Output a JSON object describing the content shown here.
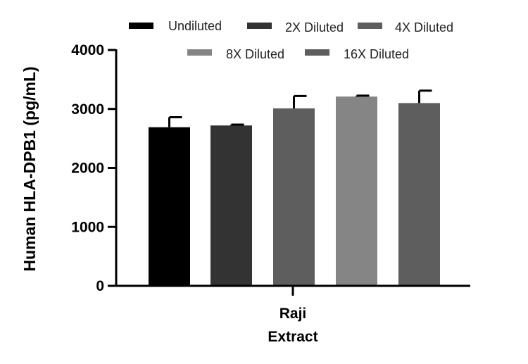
{
  "chart_data": {
    "type": "bar",
    "title": "",
    "xlabel": "",
    "ylabel": "Human HLA-DPB1 (pg/mL)",
    "ylim": [
      0,
      4000
    ],
    "yticks": [
      0,
      1000,
      2000,
      3000,
      4000
    ],
    "categories": [
      "Raji",
      "Extract"
    ],
    "category_label_lines": [
      "Raji",
      "Extract"
    ],
    "series": [
      {
        "name": "Undiluted",
        "value": 2690,
        "error": 170,
        "color": "#000000"
      },
      {
        "name": "2X Diluted",
        "value": 2720,
        "error": 15,
        "color": "#333333"
      },
      {
        "name": "4X Diluted",
        "value": 3010,
        "error": 210,
        "color": "#5e5e5e"
      },
      {
        "name": "8X Diluted",
        "value": 3210,
        "error": 15,
        "color": "#858585"
      },
      {
        "name": "16X Diluted",
        "value": 3100,
        "error": 210,
        "color": "#5e5e5e"
      }
    ],
    "legend_position": "top"
  }
}
